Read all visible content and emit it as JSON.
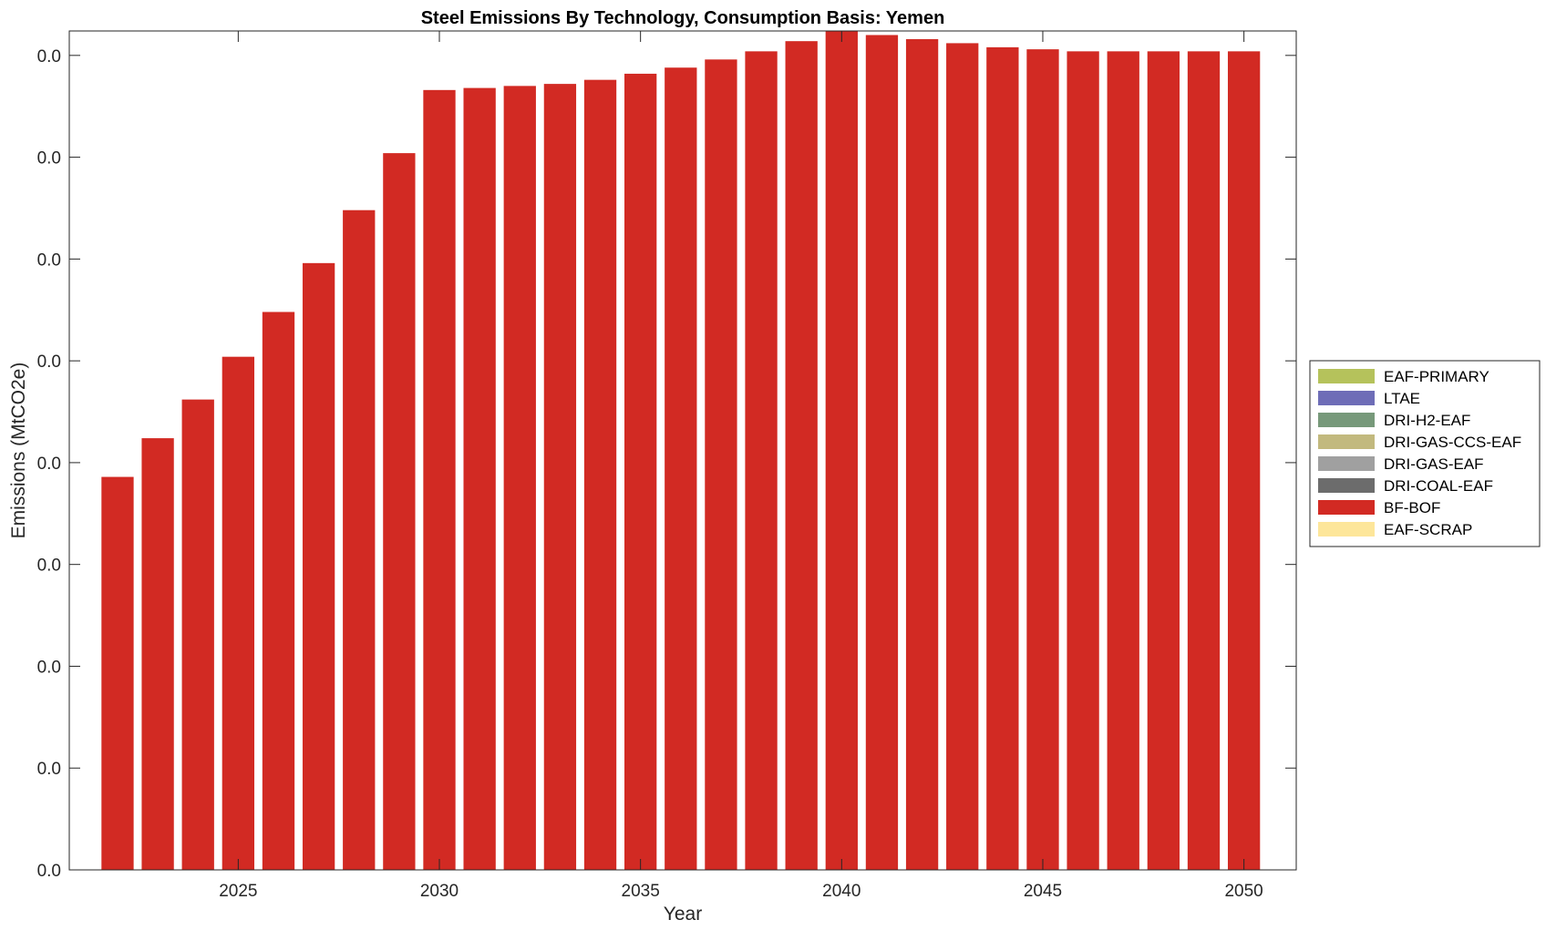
{
  "chart_data": {
    "type": "bar",
    "stacked": true,
    "title": "Steel Emissions By Technology, Consumption Basis: Yemen",
    "xlabel": "Year",
    "ylabel": "Emissions (MtCO2e)",
    "x": [
      2022,
      2023,
      2024,
      2025,
      2026,
      2027,
      2028,
      2029,
      2030,
      2031,
      2032,
      2033,
      2034,
      2035,
      2036,
      2037,
      2038,
      2039,
      2040,
      2041,
      2042,
      2043,
      2044,
      2045,
      2046,
      2047,
      2048,
      2049,
      2050
    ],
    "xlim": [
      2020.8,
      2051.3
    ],
    "xticks": [
      2025,
      2030,
      2035,
      2040,
      2045,
      2050
    ],
    "xtick_labels": [
      "2025",
      "2030",
      "2035",
      "2040",
      "2045",
      "2050"
    ],
    "ylim": [
      0,
      0.0412
    ],
    "yticks": [
      0,
      0.005,
      0.01,
      0.015,
      0.02,
      0.025,
      0.03,
      0.035,
      0.04
    ],
    "ytick_labels": [
      "0.0",
      "0.0",
      "0.0",
      "0.0",
      "0.0",
      "0.0",
      "0.0",
      "0.0",
      "0.0"
    ],
    "grid": false,
    "legend_position": "right",
    "series": [
      {
        "name": "EAF-PRIMARY",
        "color": "#b5c25b",
        "values": [
          0,
          0,
          0,
          0,
          0,
          0,
          0,
          0,
          0,
          0,
          0,
          0,
          0,
          0,
          0,
          0,
          0,
          0,
          0,
          0,
          0,
          0,
          0,
          0,
          0,
          0,
          0,
          0,
          0
        ]
      },
      {
        "name": "LTAE",
        "color": "#6e6db7",
        "values": [
          0,
          0,
          0,
          0,
          0,
          0,
          0,
          0,
          0,
          0,
          0,
          0,
          0,
          0,
          0,
          0,
          0,
          0,
          0,
          0,
          0,
          0,
          0,
          0,
          0,
          0,
          0,
          0,
          0
        ]
      },
      {
        "name": "DRI-H2-EAF",
        "color": "#77997a",
        "values": [
          0,
          0,
          0,
          0,
          0,
          0,
          0,
          0,
          0,
          0,
          0,
          0,
          0,
          0,
          0,
          0,
          0,
          0,
          0,
          0,
          0,
          0,
          0,
          0,
          0,
          0,
          0,
          0,
          0
        ]
      },
      {
        "name": "DRI-GAS-CCS-EAF",
        "color": "#c2b97e",
        "values": [
          0,
          0,
          0,
          0,
          0,
          0,
          0,
          0,
          0,
          0,
          0,
          0,
          0,
          0,
          0,
          0,
          0,
          0,
          0,
          0,
          0,
          0,
          0,
          0,
          0,
          0,
          0,
          0,
          0
        ]
      },
      {
        "name": "DRI-GAS-EAF",
        "color": "#a0a0a0",
        "values": [
          0,
          0,
          0,
          0,
          0,
          0,
          0,
          0,
          0,
          0,
          0,
          0,
          0,
          0,
          0,
          0,
          0,
          0,
          0,
          0,
          0,
          0,
          0,
          0,
          0,
          0,
          0,
          0,
          0
        ]
      },
      {
        "name": "DRI-COAL-EAF",
        "color": "#6c6c6c",
        "values": [
          0,
          0,
          0,
          0,
          0,
          0,
          0,
          0,
          0,
          0,
          0,
          0,
          0,
          0,
          0,
          0,
          0,
          0,
          0,
          0,
          0,
          0,
          0,
          0,
          0,
          0,
          0,
          0,
          0
        ]
      },
      {
        "name": "BF-BOF",
        "color": "#d22a23",
        "values": [
          0.0193,
          0.0212,
          0.0231,
          0.0252,
          0.0274,
          0.0298,
          0.0324,
          0.0352,
          0.0383,
          0.0384,
          0.0385,
          0.0386,
          0.0388,
          0.0391,
          0.0394,
          0.0398,
          0.0402,
          0.0407,
          0.0412,
          0.041,
          0.0408,
          0.0406,
          0.0404,
          0.0403,
          0.0402,
          0.0402,
          0.0402,
          0.0402,
          0.0402
        ]
      },
      {
        "name": "EAF-SCRAP",
        "color": "#fde69a",
        "values": [
          0,
          0,
          0,
          0,
          0,
          0,
          0,
          0,
          0,
          0,
          0,
          0,
          0,
          0,
          0,
          0,
          0,
          0,
          0,
          0,
          0,
          0,
          0,
          0,
          0,
          0,
          0,
          0,
          0
        ]
      }
    ]
  }
}
